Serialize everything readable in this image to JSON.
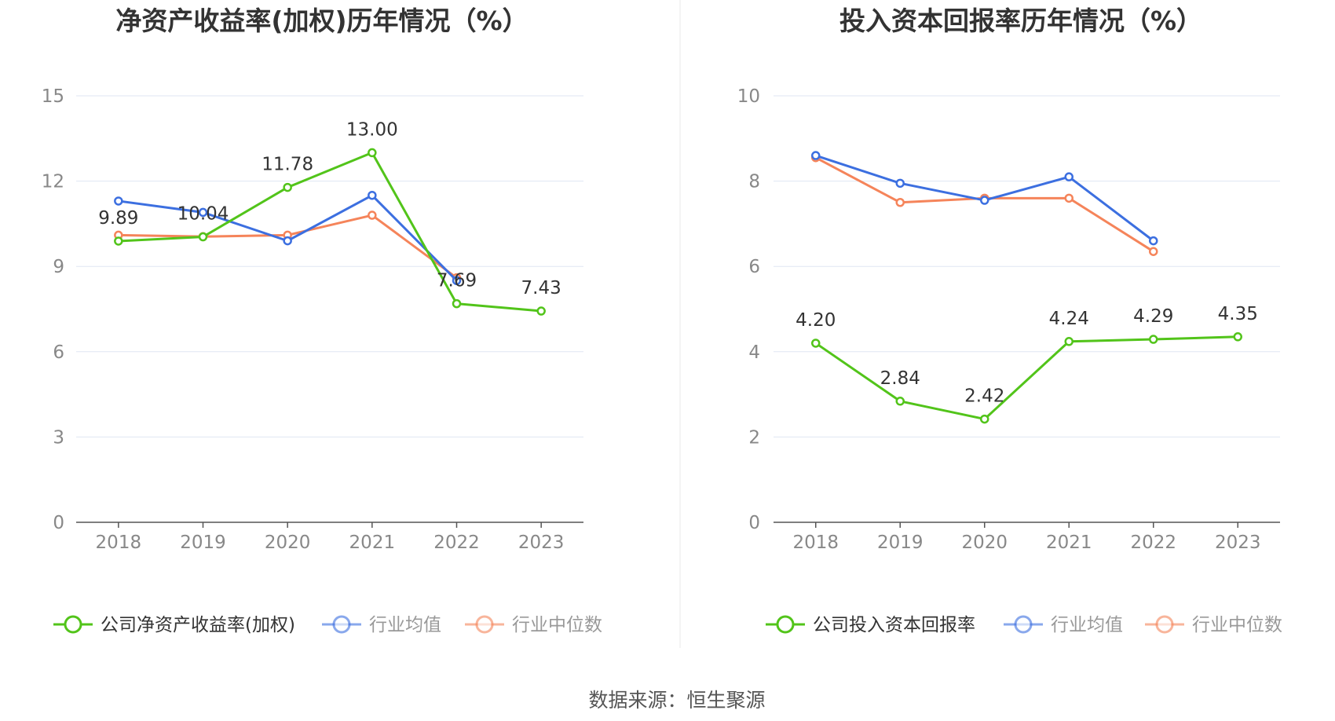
{
  "source": "数据来源：恒生聚源",
  "chart_data": [
    {
      "type": "line",
      "title": "净资产收益率(加权)历年情况（%）",
      "categories": [
        "2018",
        "2019",
        "2020",
        "2021",
        "2022",
        "2023"
      ],
      "ylim": [
        0,
        15
      ],
      "yticks": [
        0,
        3,
        6,
        9,
        12,
        15
      ],
      "grid": true,
      "legend_position": "bottom",
      "series": [
        {
          "name": "公司净资产收益率(加权)",
          "color": "#52c41a",
          "labeled": true,
          "values": [
            9.89,
            10.04,
            11.78,
            13.0,
            7.69,
            7.43
          ],
          "labels": [
            "9.89",
            "10.04",
            "11.78",
            "13.00",
            "7.69",
            "7.43"
          ]
        },
        {
          "name": "行业均值",
          "color": "#3c6fe0",
          "labeled": false,
          "values": [
            11.3,
            10.9,
            9.9,
            11.5,
            8.5,
            null
          ]
        },
        {
          "name": "行业中位数",
          "color": "#f5845a",
          "labeled": false,
          "values": [
            10.1,
            10.05,
            10.1,
            10.8,
            8.6,
            null
          ]
        }
      ]
    },
    {
      "type": "line",
      "title": "投入资本回报率历年情况（%）",
      "categories": [
        "2018",
        "2019",
        "2020",
        "2021",
        "2022",
        "2023"
      ],
      "ylim": [
        0,
        10
      ],
      "yticks": [
        0,
        2,
        4,
        6,
        8,
        10
      ],
      "grid": true,
      "legend_position": "bottom",
      "series": [
        {
          "name": "公司投入资本回报率",
          "color": "#52c41a",
          "labeled": true,
          "values": [
            4.2,
            2.84,
            2.42,
            4.24,
            4.29,
            4.35
          ],
          "labels": [
            "4.20",
            "2.84",
            "2.42",
            "4.24",
            "4.29",
            "4.35"
          ]
        },
        {
          "name": "行业均值",
          "color": "#3c6fe0",
          "labeled": false,
          "values": [
            8.6,
            7.95,
            7.55,
            8.1,
            6.6,
            null
          ]
        },
        {
          "name": "行业中位数",
          "color": "#f5845a",
          "labeled": false,
          "values": [
            8.55,
            7.5,
            7.6,
            7.6,
            6.35,
            null
          ]
        }
      ]
    }
  ]
}
